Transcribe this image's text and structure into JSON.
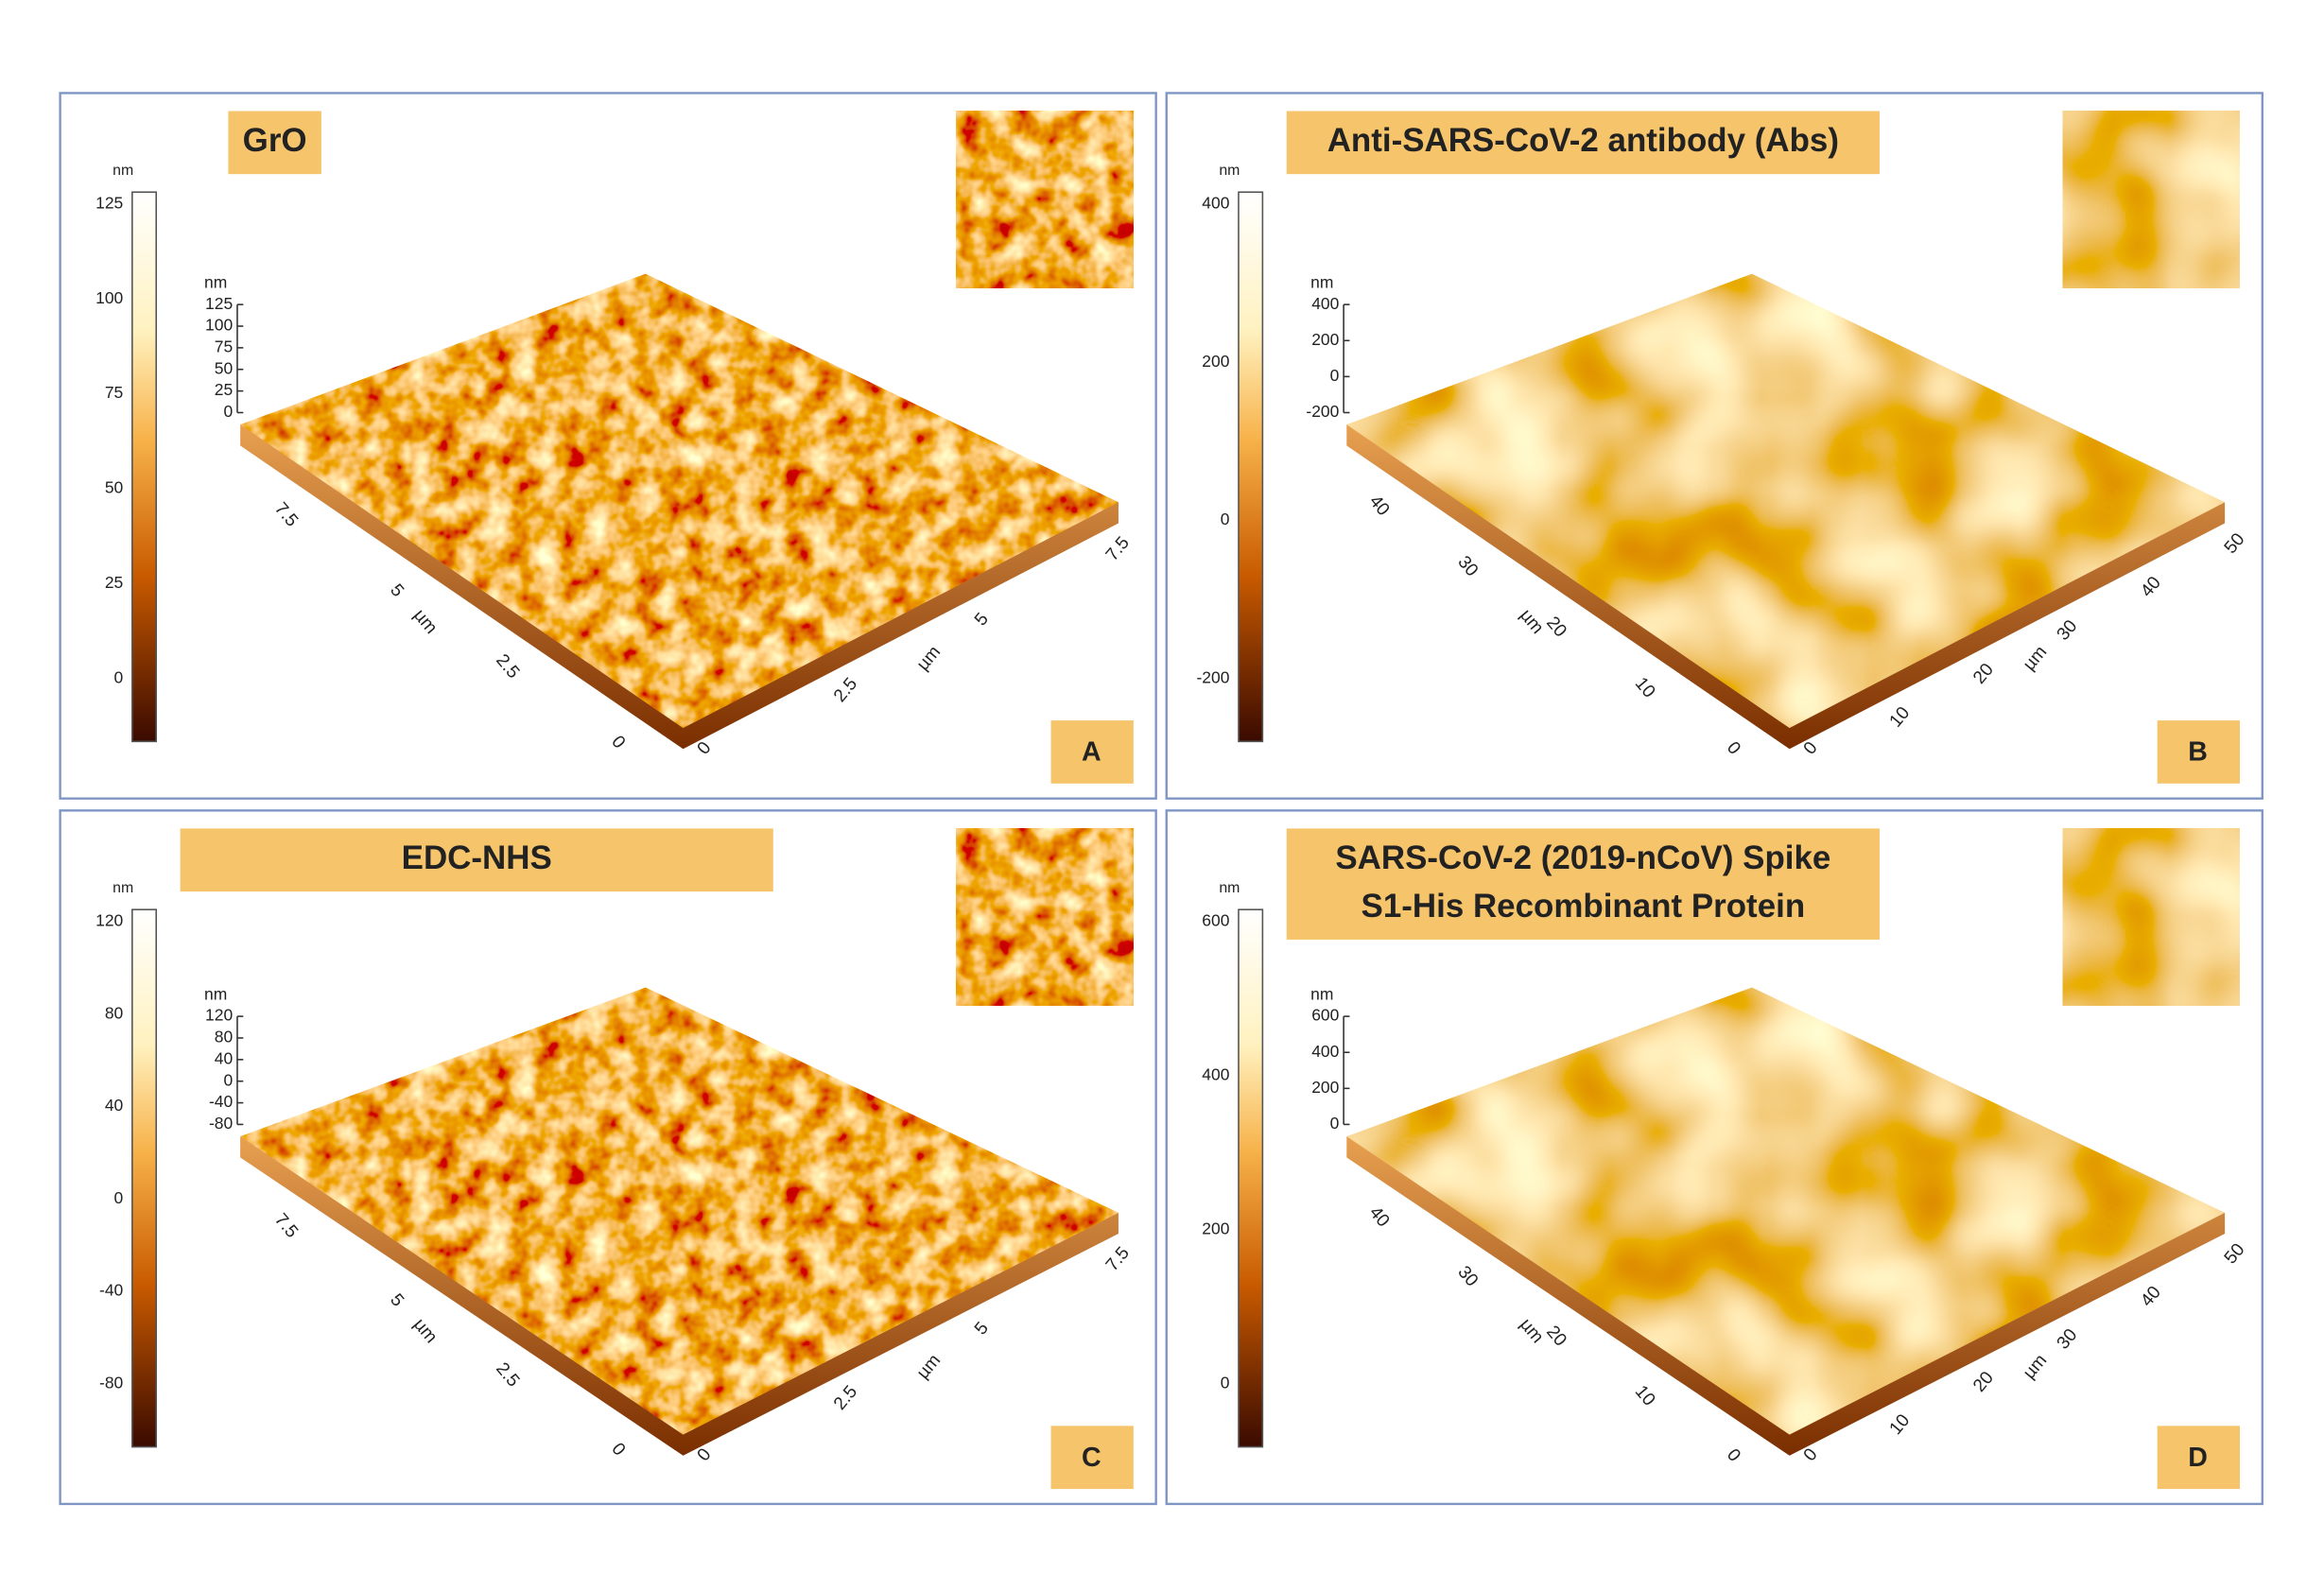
{
  "panels": [
    {
      "label": "A",
      "title": [
        "GrO"
      ],
      "colorbar": {
        "unit": "nm",
        "ticks": [
          125,
          100,
          75,
          50,
          25,
          0
        ]
      },
      "z_axis": {
        "unit": "nm",
        "ticks": [
          125,
          100,
          75,
          50,
          25,
          0
        ]
      },
      "left_axis": {
        "unit": "µm",
        "ticks": [
          7.5,
          5,
          2.5,
          0
        ]
      },
      "right_axis": {
        "unit": "µm",
        "ticks": [
          0,
          2.5,
          5,
          7.5
        ]
      }
    },
    {
      "label": "B",
      "title": [
        "Anti-SARS-CoV-2 antibody (Abs)"
      ],
      "colorbar": {
        "unit": "nm",
        "ticks": [
          400,
          200,
          0,
          -200
        ]
      },
      "z_axis": {
        "unit": "nm",
        "ticks": [
          400,
          200,
          0,
          -200
        ]
      },
      "left_axis": {
        "unit": "µm",
        "ticks": [
          40,
          30,
          20,
          10,
          0
        ]
      },
      "right_axis": {
        "unit": "µm",
        "ticks": [
          0,
          10,
          20,
          30,
          40,
          50
        ]
      }
    },
    {
      "label": "C",
      "title": [
        "EDC-NHS"
      ],
      "colorbar": {
        "unit": "nm",
        "ticks": [
          120,
          80,
          40,
          0,
          -40,
          -80
        ]
      },
      "z_axis": {
        "unit": "nm",
        "ticks": [
          120,
          80,
          40,
          0,
          -40,
          -80
        ]
      },
      "left_axis": {
        "unit": "µm",
        "ticks": [
          7.5,
          5,
          2.5,
          0
        ]
      },
      "right_axis": {
        "unit": "µm",
        "ticks": [
          0,
          2.5,
          5,
          7.5
        ]
      }
    },
    {
      "label": "D",
      "title": [
        "SARS-CoV-2 (2019-nCoV) Spike",
        "S1-His Recombinant Protein"
      ],
      "colorbar": {
        "unit": "nm",
        "ticks": [
          600,
          400,
          200,
          0
        ]
      },
      "z_axis": {
        "unit": "nm",
        "ticks": [
          600,
          400,
          200,
          0
        ]
      },
      "left_axis": {
        "unit": "µm",
        "ticks": [
          40,
          30,
          20,
          10,
          0
        ]
      },
      "right_axis": {
        "unit": "µm",
        "ticks": [
          0,
          10,
          20,
          30,
          40,
          50
        ]
      }
    }
  ]
}
